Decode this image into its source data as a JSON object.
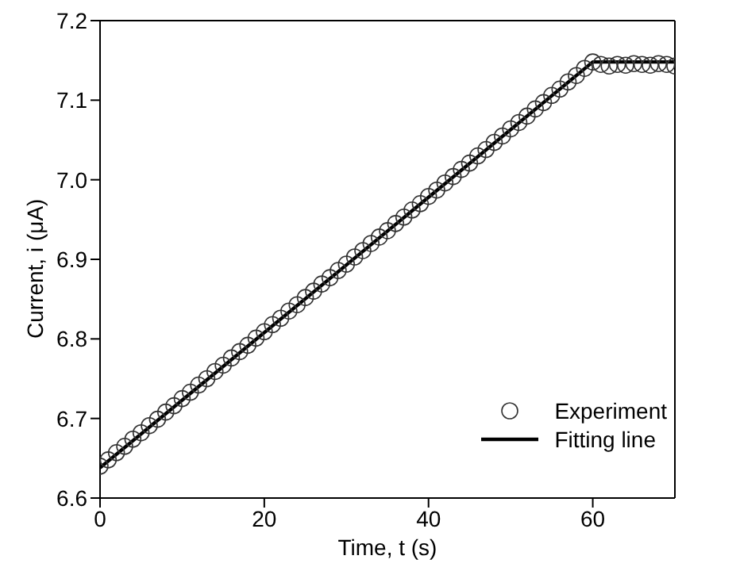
{
  "chart_data": {
    "type": "scatter",
    "xlabel": "Time, t (s)",
    "ylabel": "Current, i (μA)",
    "xlim": [
      0,
      70
    ],
    "xticks": [
      0,
      20,
      40,
      60
    ],
    "ylim": [
      6.6,
      7.2
    ],
    "yticks": [
      6.6,
      6.7,
      6.8,
      6.9,
      {
        "value": 7,
        "label": "7.0"
      },
      7.1,
      7.2
    ],
    "grid": false,
    "legend": "bottom right",
    "x": [
      0,
      1,
      2,
      3,
      4,
      5,
      6,
      7,
      8,
      9,
      10,
      11,
      12,
      13,
      14,
      15,
      16,
      17,
      18,
      19,
      20,
      21,
      22,
      23,
      24,
      25,
      26,
      27,
      28,
      29,
      30,
      31,
      32,
      33,
      34,
      35,
      36,
      37,
      38,
      39,
      40,
      41,
      42,
      43,
      44,
      45,
      46,
      47,
      48,
      49,
      50,
      51,
      52,
      53,
      54,
      55,
      56,
      57,
      58,
      59,
      60,
      61,
      62,
      63,
      64,
      65,
      66,
      67,
      68,
      69,
      70
    ],
    "series": [
      {
        "name": "Experiment",
        "marker": "circle",
        "color": "#333333",
        "values": [
          6.64,
          6.648,
          6.657,
          6.665,
          6.674,
          6.682,
          6.691,
          6.699,
          6.708,
          6.716,
          6.725,
          6.733,
          6.742,
          6.75,
          6.759,
          6.767,
          6.776,
          6.784,
          6.792,
          6.801,
          6.809,
          6.818,
          6.826,
          6.835,
          6.843,
          6.852,
          6.86,
          6.869,
          6.877,
          6.886,
          6.894,
          6.903,
          6.911,
          6.92,
          6.928,
          6.936,
          6.945,
          6.953,
          6.962,
          6.97,
          6.979,
          6.987,
          6.996,
          7.004,
          7.013,
          7.021,
          7.03,
          7.038,
          7.047,
          7.055,
          7.064,
          7.072,
          7.08,
          7.089,
          7.097,
          7.106,
          7.114,
          7.123,
          7.131,
          7.14,
          7.148,
          7.145,
          7.143,
          7.145,
          7.144,
          7.146,
          7.145,
          7.144,
          7.146,
          7.145,
          7.143
        ]
      },
      {
        "name": "Fitting line",
        "type": "line",
        "marker": "none",
        "line_style": "solid",
        "color": "#000000",
        "x": [
          0,
          60,
          70
        ],
        "values": [
          6.638,
          7.148,
          7.148
        ]
      }
    ]
  }
}
